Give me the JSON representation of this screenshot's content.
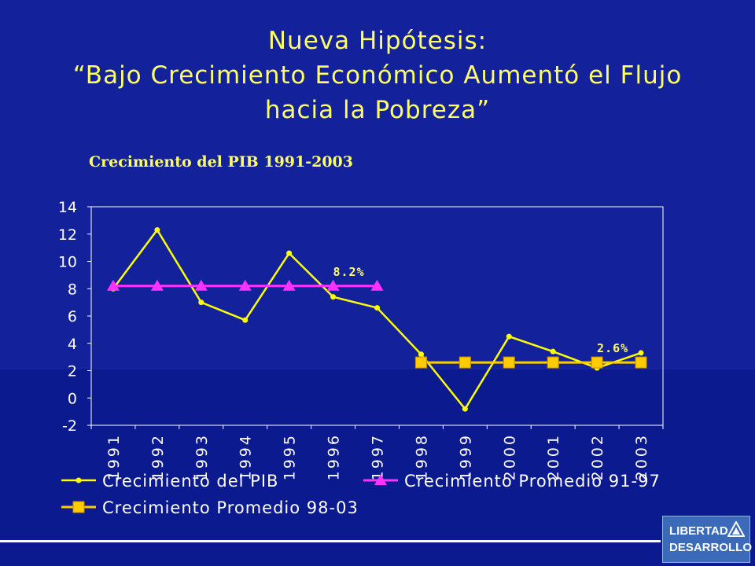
{
  "slide": {
    "title_line1": "Nueva Hipótesis:",
    "title_line2": "“Bajo Crecimiento Económico Aumentó el Flujo",
    "title_line3": "hacia la Pobreza”"
  },
  "logo": {
    "line1": "LIBERTAD",
    "line2": "DESARROLLO",
    "icon": "triangle-logo-icon"
  },
  "colors": {
    "background": "#13229a",
    "title": "#ffff66",
    "gdp_series": "#ffff00",
    "avg_91_97": "#ff33ff",
    "avg_98_03": "#ffcc00",
    "axis": "#ffffff"
  },
  "chart_data": {
    "type": "line",
    "title": "Crecimiento del PIB 1991-2003",
    "categories": [
      "1991",
      "1992",
      "1993",
      "1994",
      "1995",
      "1996",
      "1997",
      "1998",
      "1999",
      "2000",
      "2001",
      "2002",
      "2003"
    ],
    "ylim": [
      -2,
      14
    ],
    "yticks": [
      "14",
      "12",
      "10",
      "8",
      "6",
      "4",
      "2",
      "0",
      "-2"
    ],
    "grid": false,
    "legend_position": "bottom",
    "series": [
      {
        "name": "Crecimiento del PIB",
        "marker": "dot",
        "values": [
          8.0,
          12.3,
          7.0,
          5.7,
          10.6,
          7.4,
          6.6,
          3.2,
          -0.8,
          4.5,
          3.4,
          2.2,
          3.3
        ]
      },
      {
        "name": "Crecimiento Promedio 91-97",
        "marker": "triangle",
        "values": [
          8.2,
          8.2,
          8.2,
          8.2,
          8.2,
          8.2,
          8.2,
          null,
          null,
          null,
          null,
          null,
          null
        ]
      },
      {
        "name": "Crecimiento Promedio 98-03",
        "marker": "square",
        "values": [
          null,
          null,
          null,
          null,
          null,
          null,
          null,
          2.6,
          2.6,
          2.6,
          2.6,
          2.6,
          2.6
        ]
      }
    ],
    "annotations": [
      {
        "text": "8.2%",
        "x": "1996",
        "y": 8.2
      },
      {
        "text": "2.6%",
        "x": "2002",
        "y": 2.6
      }
    ]
  }
}
